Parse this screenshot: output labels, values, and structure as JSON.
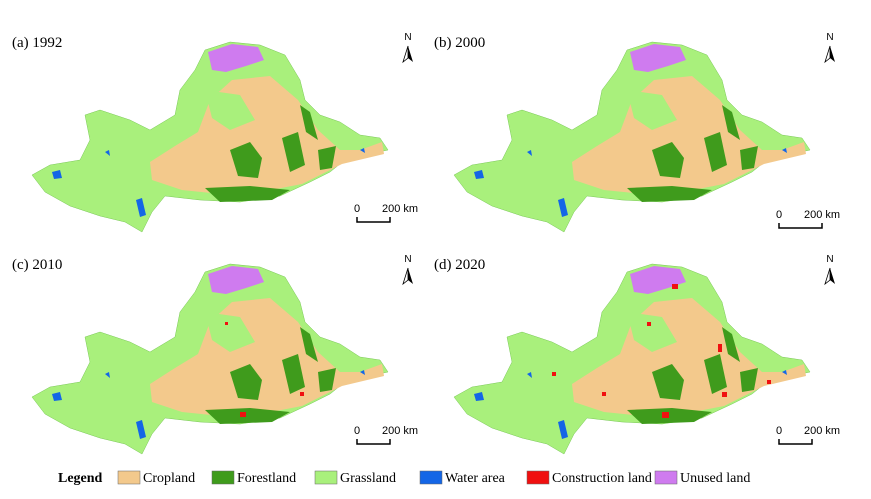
{
  "panels": [
    {
      "label": "(a) 1992",
      "north": "N",
      "scale": {
        "zero": "0",
        "distance": "200 km"
      }
    },
    {
      "label": "(b) 2000",
      "north": "N",
      "scale": {
        "zero": "0",
        "distance": "200 km"
      }
    },
    {
      "label": "(c) 2010",
      "north": "N",
      "scale": {
        "zero": "0",
        "distance": "200 km"
      }
    },
    {
      "label": "(d) 2020",
      "north": "N",
      "scale": {
        "zero": "0",
        "distance": "200 km"
      }
    }
  ],
  "legend": {
    "title": "Legend",
    "items": [
      {
        "label": "Cropland",
        "color": "#f3c98c"
      },
      {
        "label": "Forestland",
        "color": "#3f9b1c"
      },
      {
        "label": "Grassland",
        "color": "#a9f07c"
      },
      {
        "label": "Water area",
        "color": "#1466e6"
      },
      {
        "label": "Construction land",
        "color": "#f01010"
      },
      {
        "label": "Unused land",
        "color": "#cf7bef"
      }
    ]
  }
}
